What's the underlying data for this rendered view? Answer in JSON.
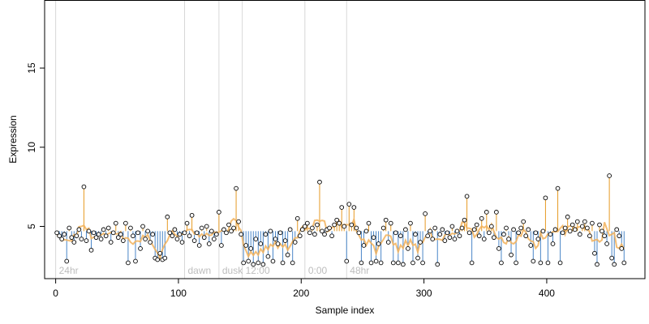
{
  "chart_data": {
    "type": "scatter",
    "xlabel": "Sample index",
    "ylabel": "Expression",
    "xlim": [
      -9,
      480
    ],
    "ylim": [
      1.7,
      19.3
    ],
    "xticks": [
      0,
      100,
      200,
      300,
      400
    ],
    "yticks": [
      5,
      10,
      15
    ],
    "baseline": 4.7,
    "colors": {
      "above": "#e69a24",
      "below": "#4a86c8",
      "smooth": "#f2b25a",
      "point_fill": "#ffffff",
      "point_stroke": "#000000",
      "vline": "#d8d8d8"
    },
    "markers": [
      {
        "x": 0,
        "label": "24hr"
      },
      {
        "x": 105,
        "label": "dawn"
      },
      {
        "x": 133,
        "label": "dusk"
      },
      {
        "x": 152,
        "label": "12:00"
      },
      {
        "x": 203,
        "label": "0:00"
      },
      {
        "x": 237,
        "label": "48hr"
      }
    ],
    "points": [
      [
        1,
        4.6
      ],
      [
        3,
        4.4
      ],
      [
        5,
        4.2
      ],
      [
        7,
        4.5
      ],
      [
        9,
        2.8
      ],
      [
        11,
        4.9
      ],
      [
        13,
        4.3
      ],
      [
        15,
        4.0
      ],
      [
        17,
        4.4
      ],
      [
        19,
        4.8
      ],
      [
        21,
        4.2
      ],
      [
        23,
        7.5
      ],
      [
        25,
        4.1
      ],
      [
        27,
        4.7
      ],
      [
        29,
        3.5
      ],
      [
        31,
        4.6
      ],
      [
        33,
        4.3
      ],
      [
        35,
        4.5
      ],
      [
        37,
        4.2
      ],
      [
        39,
        4.8
      ],
      [
        41,
        4.4
      ],
      [
        43,
        4.9
      ],
      [
        45,
        4.0
      ],
      [
        47,
        4.6
      ],
      [
        49,
        5.2
      ],
      [
        51,
        4.3
      ],
      [
        53,
        4.5
      ],
      [
        55,
        4.1
      ],
      [
        57,
        5.2
      ],
      [
        59,
        2.7
      ],
      [
        61,
        4.9
      ],
      [
        63,
        4.4
      ],
      [
        65,
        2.8
      ],
      [
        67,
        4.6
      ],
      [
        69,
        3.6
      ],
      [
        71,
        5.0
      ],
      [
        73,
        4.2
      ],
      [
        75,
        4.7
      ],
      [
        77,
        4.0
      ],
      [
        79,
        4.5
      ],
      [
        81,
        3.0
      ],
      [
        83,
        2.9
      ],
      [
        85,
        3.3
      ],
      [
        87,
        2.9
      ],
      [
        89,
        3.0
      ],
      [
        91,
        5.6
      ],
      [
        93,
        4.6
      ],
      [
        95,
        4.4
      ],
      [
        97,
        4.8
      ],
      [
        99,
        4.2
      ],
      [
        101,
        4.5
      ],
      [
        103,
        4.0
      ],
      [
        105,
        4.6
      ],
      [
        107,
        5.2
      ],
      [
        109,
        4.4
      ],
      [
        111,
        5.7
      ],
      [
        113,
        4.1
      ],
      [
        115,
        4.6
      ],
      [
        117,
        3.8
      ],
      [
        119,
        4.9
      ],
      [
        121,
        4.3
      ],
      [
        123,
        5.0
      ],
      [
        125,
        3.9
      ],
      [
        127,
        4.7
      ],
      [
        129,
        4.2
      ],
      [
        131,
        4.5
      ],
      [
        133,
        5.9
      ],
      [
        135,
        3.8
      ],
      [
        137,
        4.8
      ],
      [
        139,
        4.6
      ],
      [
        141,
        5.1
      ],
      [
        143,
        4.7
      ],
      [
        145,
        4.9
      ],
      [
        147,
        7.4
      ],
      [
        149,
        5.3
      ],
      [
        151,
        4.5
      ],
      [
        153,
        2.7
      ],
      [
        155,
        3.8
      ],
      [
        157,
        2.8
      ],
      [
        159,
        3.6
      ],
      [
        161,
        2.6
      ],
      [
        163,
        4.2
      ],
      [
        165,
        2.7
      ],
      [
        167,
        3.9
      ],
      [
        169,
        2.6
      ],
      [
        171,
        4.5
      ],
      [
        173,
        3.1
      ],
      [
        175,
        4.7
      ],
      [
        177,
        2.8
      ],
      [
        179,
        4.2
      ],
      [
        181,
        3.9
      ],
      [
        183,
        4.6
      ],
      [
        185,
        2.7
      ],
      [
        187,
        4.1
      ],
      [
        189,
        3.2
      ],
      [
        191,
        4.8
      ],
      [
        193,
        2.7
      ],
      [
        195,
        4.0
      ],
      [
        197,
        5.5
      ],
      [
        199,
        4.4
      ],
      [
        201,
        4.8
      ],
      [
        203,
        5.0
      ],
      [
        205,
        5.2
      ],
      [
        207,
        4.6
      ],
      [
        209,
        4.9
      ],
      [
        211,
        4.5
      ],
      [
        213,
        5.1
      ],
      [
        215,
        7.8
      ],
      [
        217,
        4.7
      ],
      [
        219,
        4.5
      ],
      [
        221,
        4.8
      ],
      [
        223,
        4.9
      ],
      [
        225,
        4.4
      ],
      [
        227,
        5.1
      ],
      [
        229,
        5.4
      ],
      [
        231,
        5.2
      ],
      [
        233,
        6.2
      ],
      [
        235,
        5.0
      ],
      [
        237,
        2.8
      ],
      [
        239,
        6.4
      ],
      [
        241,
        5.1
      ],
      [
        243,
        6.2
      ],
      [
        245,
        4.9
      ],
      [
        247,
        4.6
      ],
      [
        249,
        2.7
      ],
      [
        251,
        3.8
      ],
      [
        253,
        4.7
      ],
      [
        255,
        5.2
      ],
      [
        257,
        2.7
      ],
      [
        259,
        4.3
      ],
      [
        261,
        2.8
      ],
      [
        263,
        3.9
      ],
      [
        265,
        2.7
      ],
      [
        267,
        4.9
      ],
      [
        269,
        5.4
      ],
      [
        271,
        4.0
      ],
      [
        273,
        5.2
      ],
      [
        275,
        2.7
      ],
      [
        277,
        4.6
      ],
      [
        279,
        2.7
      ],
      [
        281,
        4.4
      ],
      [
        283,
        2.6
      ],
      [
        285,
        4.8
      ],
      [
        287,
        3.6
      ],
      [
        289,
        5.2
      ],
      [
        291,
        2.7
      ],
      [
        293,
        4.5
      ],
      [
        295,
        3.0
      ],
      [
        297,
        4.0
      ],
      [
        299,
        2.7
      ],
      [
        301,
        5.8
      ],
      [
        303,
        4.4
      ],
      [
        305,
        4.7
      ],
      [
        307,
        4.2
      ],
      [
        309,
        4.9
      ],
      [
        311,
        2.6
      ],
      [
        313,
        4.5
      ],
      [
        315,
        4.8
      ],
      [
        317,
        4.1
      ],
      [
        319,
        4.6
      ],
      [
        321,
        4.3
      ],
      [
        323,
        5.0
      ],
      [
        325,
        4.2
      ],
      [
        327,
        4.7
      ],
      [
        329,
        4.4
      ],
      [
        331,
        4.9
      ],
      [
        333,
        5.4
      ],
      [
        335,
        6.9
      ],
      [
        337,
        4.6
      ],
      [
        339,
        2.7
      ],
      [
        341,
        4.8
      ],
      [
        343,
        5.1
      ],
      [
        345,
        4.4
      ],
      [
        347,
        5.5
      ],
      [
        349,
        4.2
      ],
      [
        351,
        5.9
      ],
      [
        353,
        4.6
      ],
      [
        355,
        5.0
      ],
      [
        357,
        4.3
      ],
      [
        359,
        5.9
      ],
      [
        361,
        3.6
      ],
      [
        363,
        2.7
      ],
      [
        365,
        4.5
      ],
      [
        367,
        4.9
      ],
      [
        369,
        4.2
      ],
      [
        371,
        3.2
      ],
      [
        373,
        4.8
      ],
      [
        375,
        2.7
      ],
      [
        377,
        4.6
      ],
      [
        379,
        4.9
      ],
      [
        381,
        5.3
      ],
      [
        383,
        4.4
      ],
      [
        385,
        4.8
      ],
      [
        387,
        3.8
      ],
      [
        389,
        2.8
      ],
      [
        391,
        4.6
      ],
      [
        393,
        4.2
      ],
      [
        395,
        2.7
      ],
      [
        397,
        4.7
      ],
      [
        399,
        6.8
      ],
      [
        401,
        2.7
      ],
      [
        403,
        4.5
      ],
      [
        405,
        3.9
      ],
      [
        407,
        4.8
      ],
      [
        409,
        7.4
      ],
      [
        411,
        2.7
      ],
      [
        413,
        4.6
      ],
      [
        415,
        4.9
      ],
      [
        417,
        5.6
      ],
      [
        419,
        4.7
      ],
      [
        421,
        5.1
      ],
      [
        423,
        4.8
      ],
      [
        425,
        5.3
      ],
      [
        427,
        4.5
      ],
      [
        429,
        5.0
      ],
      [
        431,
        5.3
      ],
      [
        433,
        4.9
      ],
      [
        435,
        4.4
      ],
      [
        437,
        5.2
      ],
      [
        439,
        3.3
      ],
      [
        441,
        2.6
      ],
      [
        443,
        5.1
      ],
      [
        445,
        4.7
      ],
      [
        447,
        4.4
      ],
      [
        449,
        3.9
      ],
      [
        451,
        8.2
      ],
      [
        453,
        3.0
      ],
      [
        455,
        2.6
      ],
      [
        457,
        4.8
      ],
      [
        459,
        4.4
      ],
      [
        461,
        3.6
      ],
      [
        463,
        2.7
      ]
    ]
  }
}
